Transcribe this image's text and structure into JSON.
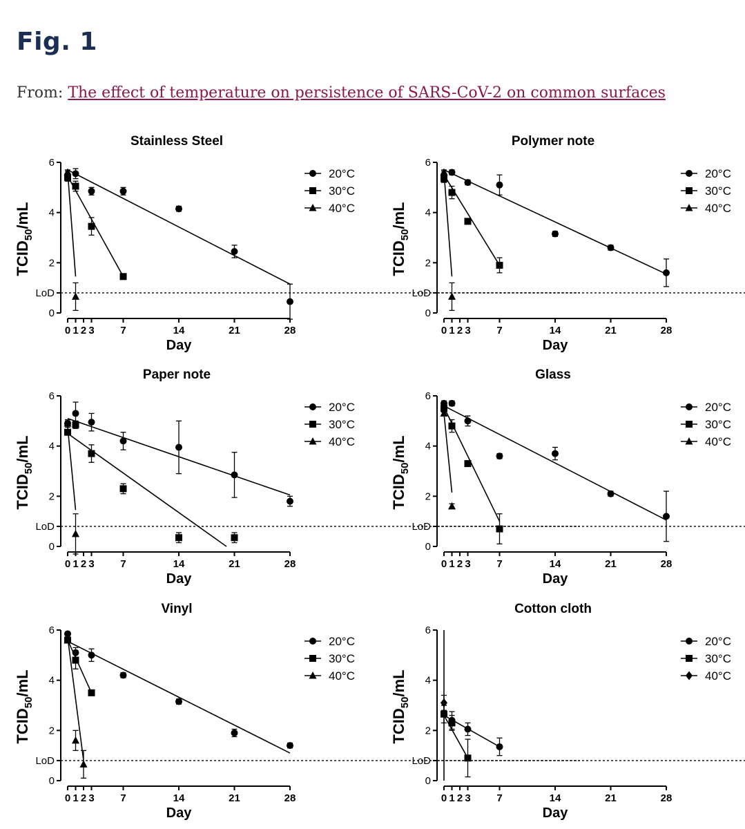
{
  "figure": {
    "title": "Fig. 1",
    "from_label": "From:",
    "link_text": "The effect of temperature on persistence of SARS-CoV-2 on common surfaces"
  },
  "chart_data": [
    {
      "type": "scatter",
      "title": "Stainless Steel",
      "xlabel": "Day",
      "ylabel": "TCID50/mL",
      "ylabel_main": "TCID",
      "ylabel_sub": "50",
      "ylabel_tail": "/mL",
      "xticks": [
        0,
        1,
        2,
        3,
        7,
        14,
        21,
        28
      ],
      "yticks": [
        0,
        2,
        4,
        6
      ],
      "ylim": [
        0,
        6
      ],
      "xlim": [
        0,
        28
      ],
      "lod": {
        "label": "LoD",
        "value": 0.8
      },
      "legend_position": "right",
      "series": [
        {
          "name": "20°C",
          "marker": "circle",
          "x": [
            0,
            1,
            3,
            7,
            14,
            21,
            28
          ],
          "y": [
            5.5,
            5.55,
            4.85,
            4.85,
            4.15,
            2.45,
            0.45
          ],
          "err": [
            0.15,
            0.2,
            0.15,
            0.15,
            0.1,
            0.25,
            0.7
          ],
          "fit": [
            [
              0,
              5.7
            ],
            [
              28,
              1.15
            ]
          ]
        },
        {
          "name": "30°C",
          "marker": "square",
          "x": [
            0,
            1,
            3,
            7
          ],
          "y": [
            5.4,
            5.05,
            3.45,
            1.45
          ],
          "err": [
            0.15,
            0.2,
            0.35,
            0.1
          ],
          "fit": [
            [
              0,
              5.45
            ],
            [
              7,
              1.45
            ]
          ]
        },
        {
          "name": "40°C",
          "marker": "triangle",
          "x": [
            0,
            1
          ],
          "y": [
            5.6,
            0.65
          ],
          "err": [
            0.1,
            0.55
          ],
          "fit": [
            [
              0,
              5.6
            ],
            [
              1,
              1.45
            ]
          ]
        }
      ]
    },
    {
      "type": "scatter",
      "title": "Polymer note",
      "xlabel": "Day",
      "ylabel": "TCID50/mL",
      "ylabel_main": "TCID",
      "ylabel_sub": "50",
      "ylabel_tail": "/mL",
      "xticks": [
        0,
        1,
        2,
        3,
        7,
        14,
        21,
        28
      ],
      "yticks": [
        0,
        2,
        4,
        6
      ],
      "ylim": [
        0,
        6
      ],
      "xlim": [
        0,
        28
      ],
      "lod": {
        "label": "LoD",
        "value": 0.8
      },
      "legend_position": "right",
      "series": [
        {
          "name": "20°C",
          "marker": "circle",
          "x": [
            0,
            1,
            3,
            7,
            14,
            21,
            28
          ],
          "y": [
            5.5,
            5.6,
            5.2,
            5.1,
            3.15,
            2.6,
            1.6
          ],
          "err": [
            0.15,
            0.1,
            0.1,
            0.4,
            0.1,
            0.1,
            0.55
          ],
          "fit": [
            [
              0,
              5.7
            ],
            [
              28,
              1.55
            ]
          ]
        },
        {
          "name": "30°C",
          "marker": "square",
          "x": [
            0,
            1,
            3,
            7
          ],
          "y": [
            5.35,
            4.8,
            3.65,
            1.9
          ],
          "err": [
            0.15,
            0.25,
            0.1,
            0.3
          ],
          "fit": [
            [
              0,
              5.5
            ],
            [
              7,
              1.9
            ]
          ]
        },
        {
          "name": "40°C",
          "marker": "triangle",
          "x": [
            0,
            1
          ],
          "y": [
            5.6,
            0.65
          ],
          "err": [
            0.1,
            0.55
          ],
          "fit": [
            [
              0,
              5.6
            ],
            [
              1,
              1.45
            ]
          ]
        }
      ]
    },
    {
      "type": "scatter",
      "title": "Paper note",
      "xlabel": "Day",
      "ylabel": "TCID50/mL",
      "ylabel_main": "TCID",
      "ylabel_sub": "50",
      "ylabel_tail": "/mL",
      "xticks": [
        0,
        1,
        2,
        3,
        7,
        14,
        21,
        28
      ],
      "yticks": [
        0,
        2,
        4,
        6
      ],
      "ylim": [
        0,
        6
      ],
      "xlim": [
        0,
        28
      ],
      "lod": {
        "label": "LoD",
        "value": 0.8
      },
      "legend_position": "right",
      "series": [
        {
          "name": "20°C",
          "marker": "circle",
          "x": [
            0,
            1,
            3,
            7,
            14,
            21,
            28
          ],
          "y": [
            4.9,
            5.3,
            4.95,
            4.2,
            3.95,
            2.85,
            1.8
          ],
          "err": [
            0.1,
            0.45,
            0.35,
            0.35,
            1.05,
            0.9,
            0.2
          ],
          "fit": [
            [
              0,
              5.1
            ],
            [
              28,
              2.05
            ]
          ]
        },
        {
          "name": "30°C",
          "marker": "square",
          "x": [
            0,
            1,
            3,
            7,
            14,
            21
          ],
          "y": [
            4.55,
            4.85,
            3.7,
            2.3,
            0.35,
            0.35
          ],
          "err": [
            0.1,
            0.15,
            0.35,
            0.2,
            0.2,
            0.2
          ],
          "fit": [
            [
              0,
              4.5
            ],
            [
              20,
              0
            ]
          ]
        },
        {
          "name": "40°C",
          "marker": "triangle",
          "x": [
            0,
            1
          ],
          "y": [
            4.9,
            0.5
          ],
          "err": [
            0.15,
            0.8
          ],
          "fit": [
            [
              0,
              4.75
            ],
            [
              1,
              1.45
            ]
          ]
        }
      ]
    },
    {
      "type": "scatter",
      "title": "Glass",
      "xlabel": "Day",
      "ylabel": "TCID50/mL",
      "ylabel_main": "TCID",
      "ylabel_sub": "50",
      "ylabel_tail": "/mL",
      "xticks": [
        0,
        1,
        2,
        3,
        7,
        14,
        21,
        28
      ],
      "yticks": [
        0,
        2,
        4,
        6
      ],
      "ylim": [
        0,
        6
      ],
      "xlim": [
        0,
        28
      ],
      "lod": {
        "label": "LoD",
        "value": 0.8
      },
      "legend_position": "right",
      "series": [
        {
          "name": "20°C",
          "marker": "circle",
          "x": [
            0,
            1,
            3,
            7,
            14,
            21,
            28
          ],
          "y": [
            5.7,
            5.7,
            5.0,
            3.6,
            3.7,
            2.1,
            1.2
          ],
          "err": [
            0.1,
            0.1,
            0.2,
            0.1,
            0.25,
            0.1,
            1.0
          ],
          "fit": [
            [
              0,
              5.6
            ],
            [
              28,
              1.05
            ]
          ]
        },
        {
          "name": "30°C",
          "marker": "square",
          "x": [
            0,
            1,
            3,
            7
          ],
          "y": [
            5.5,
            4.8,
            3.3,
            0.7
          ],
          "err": [
            0.15,
            0.25,
            0.05,
            0.6
          ],
          "fit": [
            [
              0,
              5.55
            ],
            [
              7,
              1.0
            ]
          ]
        },
        {
          "name": "40°C",
          "marker": "triangle",
          "x": [
            0,
            1
          ],
          "y": [
            5.3,
            1.6
          ],
          "err": [
            0.1,
            0.1
          ],
          "fit": [
            [
              0,
              5.3
            ],
            [
              1,
              2.15
            ]
          ]
        }
      ]
    },
    {
      "type": "scatter",
      "title": "Vinyl",
      "xlabel": "Day",
      "ylabel": "TCID50/mL",
      "ylabel_main": "TCID",
      "ylabel_sub": "50",
      "ylabel_tail": "/mL",
      "xticks": [
        0,
        1,
        2,
        3,
        7,
        14,
        21,
        28
      ],
      "yticks": [
        0,
        2,
        4,
        6
      ],
      "ylim": [
        0,
        6
      ],
      "xlim": [
        0,
        28
      ],
      "lod": {
        "label": "LoD",
        "value": 0.8
      },
      "legend_position": "right",
      "series": [
        {
          "name": "20°C",
          "marker": "circle",
          "x": [
            0,
            1,
            3,
            7,
            14,
            21,
            28
          ],
          "y": [
            5.85,
            5.1,
            5.0,
            4.2,
            3.15,
            1.9,
            1.4
          ],
          "err": [
            0.05,
            0.2,
            0.25,
            0.1,
            0.1,
            0.15,
            0.1
          ],
          "fit": [
            [
              0,
              5.55
            ],
            [
              28,
              1.1
            ]
          ]
        },
        {
          "name": "30°C",
          "marker": "square",
          "x": [
            0,
            1,
            3
          ],
          "y": [
            5.6,
            4.8,
            3.5
          ],
          "err": [
            0.1,
            0.35,
            0.1
          ],
          "fit": [
            [
              0,
              5.6
            ],
            [
              3,
              3.5
            ]
          ]
        },
        {
          "name": "40°C",
          "marker": "triangle",
          "x": [
            0,
            1,
            2
          ],
          "y": [
            5.6,
            1.6,
            0.65
          ],
          "err": [
            0.1,
            0.4,
            0.55
          ],
          "fit": [
            [
              0,
              5.7
            ],
            [
              2,
              0.8
            ]
          ]
        }
      ]
    },
    {
      "type": "scatter",
      "title": "Cotton cloth",
      "xlabel": "Day",
      "ylabel": "TCID50/mL",
      "ylabel_main": "TCID",
      "ylabel_sub": "50",
      "ylabel_tail": "/mL",
      "xticks": [
        0,
        1,
        2,
        3,
        7,
        14,
        21,
        28
      ],
      "yticks": [
        0,
        2,
        4,
        6
      ],
      "ylim": [
        0,
        6
      ],
      "xlim": [
        0,
        28
      ],
      "lod": {
        "label": "LoD",
        "value": 0.8
      },
      "legend_position": "right",
      "series": [
        {
          "name": "20°C",
          "marker": "circle",
          "x": [
            0,
            1,
            3,
            7
          ],
          "y": [
            2.65,
            2.4,
            2.05,
            1.35
          ],
          "err": [
            0.1,
            0.35,
            0.25,
            0.35
          ],
          "fit": [
            [
              0,
              2.6
            ],
            [
              7,
              1.35
            ]
          ]
        },
        {
          "name": "30°C",
          "marker": "square",
          "x": [
            0,
            1,
            3
          ],
          "y": [
            2.65,
            2.3,
            0.9
          ],
          "err": [
            0.35,
            0.3,
            0.75
          ],
          "fit": [
            [
              0,
              2.6
            ],
            [
              3,
              0.9
            ]
          ]
        },
        {
          "name": "40°C",
          "marker": "diamond",
          "x": [
            0
          ],
          "y": [
            3.1
          ],
          "err": [
            0.3
          ],
          "fit": [
            [
              0,
              6.0
            ],
            [
              0,
              0
            ]
          ]
        }
      ]
    }
  ]
}
